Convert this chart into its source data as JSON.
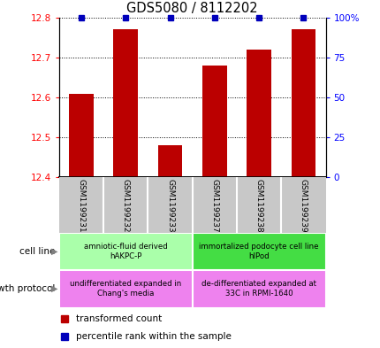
{
  "title": "GDS5080 / 8112202",
  "samples": [
    "GSM1199231",
    "GSM1199232",
    "GSM1199233",
    "GSM1199237",
    "GSM1199238",
    "GSM1199239"
  ],
  "red_values": [
    12.61,
    12.77,
    12.48,
    12.68,
    12.72,
    12.77
  ],
  "blue_positions": [
    0,
    1,
    2,
    3,
    4,
    5
  ],
  "blue_yval": 100,
  "ylim_left": [
    12.4,
    12.8
  ],
  "ylim_right": [
    0,
    100
  ],
  "yticks_left": [
    12.4,
    12.5,
    12.6,
    12.7,
    12.8
  ],
  "yticks_right": [
    0,
    25,
    50,
    75,
    100
  ],
  "cell_line_1_label": "amniotic-fluid derived\nhAKPC-P",
  "cell_line_1_color": "#AAFFAA",
  "cell_line_2_label": "immortalized podocyte cell line\nhIPod",
  "cell_line_2_color": "#44DD44",
  "growth_1_label": "undifferentiated expanded in\nChang's media",
  "growth_1_color": "#EE82EE",
  "growth_2_label": "de-differentiated expanded at\n33C in RPMI-1640",
  "growth_2_color": "#EE82EE",
  "legend_red_label": "transformed count",
  "legend_blue_label": "percentile rank within the sample",
  "cell_line_label": "cell line",
  "growth_protocol_label": "growth protocol",
  "bar_color": "#BB0000",
  "blue_color": "#0000BB",
  "background_color": "#FFFFFF",
  "sample_box_color": "#C8C8C8",
  "divider_color": "#FFFFFF"
}
